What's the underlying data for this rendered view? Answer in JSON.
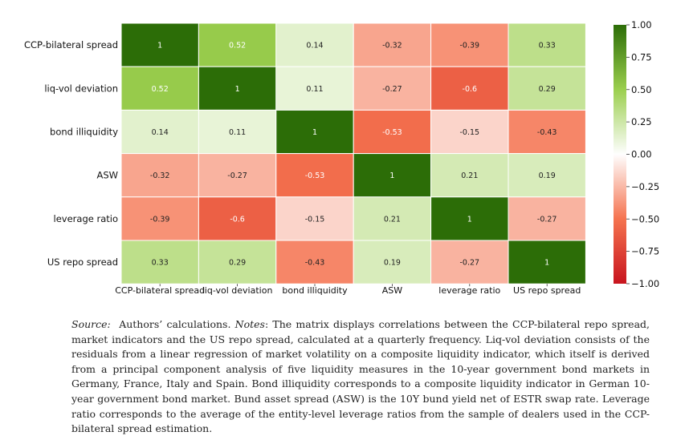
{
  "chart_data": {
    "type": "heatmap",
    "rows": [
      "CCP-bilateral spread",
      "liq-vol deviation",
      "bond illiquidity",
      "ASW",
      "leverage ratio",
      "US repo spread"
    ],
    "columns": [
      "CCP-bilateral spread",
      "liq-vol deviation",
      "bond illiquidity",
      "ASW",
      "leverage ratio",
      "US repo spread"
    ],
    "values": [
      [
        1,
        0.52,
        0.14,
        -0.32,
        -0.39,
        0.33
      ],
      [
        0.52,
        1,
        0.11,
        -0.27,
        -0.6,
        0.29
      ],
      [
        0.14,
        0.11,
        1,
        -0.53,
        -0.15,
        -0.43
      ],
      [
        -0.32,
        -0.27,
        -0.53,
        1,
        0.21,
        0.19
      ],
      [
        -0.39,
        -0.6,
        -0.15,
        0.21,
        1,
        -0.27
      ],
      [
        0.33,
        0.29,
        -0.43,
        0.19,
        -0.27,
        1
      ]
    ],
    "colorbar": {
      "range": [
        -1,
        1
      ],
      "ticks": [
        "1.00",
        "0.75",
        "0.50",
        "0.25",
        "0.00",
        "−0.25",
        "−0.50",
        "−0.75",
        "−1.00"
      ],
      "tick_values": [
        1,
        0.75,
        0.5,
        0.25,
        0,
        -0.25,
        -0.5,
        -0.75,
        -1
      ],
      "colors": {
        "neg_end": "#c8141e",
        "neg_mid": "#f5734f",
        "neutral": "#fefefe",
        "pos_mid": "#9bcf4e",
        "pos_end": "#2c6d07"
      }
    }
  },
  "caption": {
    "source_label": "Source:",
    "source_text": "Authors’ calculations.",
    "notes_label": "Notes",
    "notes_text": ": The matrix displays correlations between the CCP-bilateral repo spread, market indicators and the US repo spread, calculated at a quarterly frequency. Liq-vol deviation consists of the residuals from a linear regression of market volatility on a composite liquidity indicator, which itself is derived from a principal component analysis of five liquidity measures in the 10-year government bond markets in Germany, France, Italy and Spain. Bond illiquidity corresponds to a composite liquidity indicator in German 10-year government bond market. Bund asset spread (ASW) is the 10Y bund yield net of ESTR swap rate. Leverage ratio corresponds to the average of the entity-level leverage ratios from the sample of dealers used in the CCP-bilateral spread estimation."
  }
}
